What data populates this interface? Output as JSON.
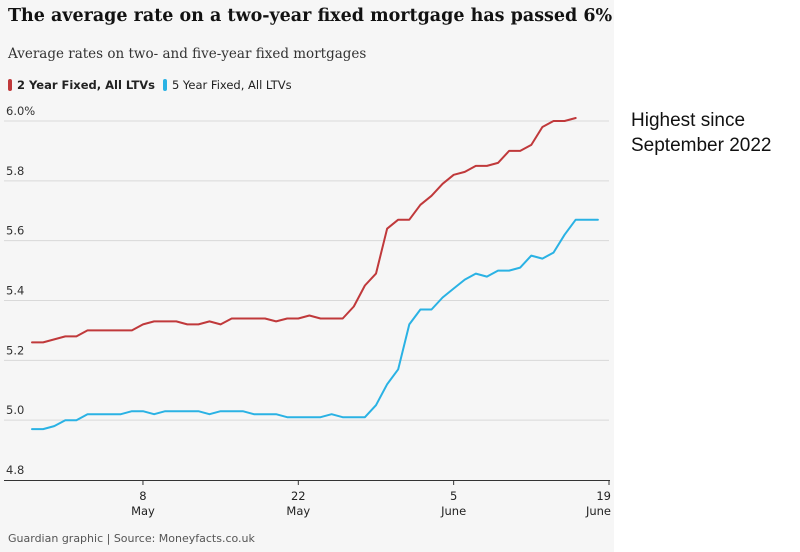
{
  "title": "The average rate on a two-year fixed mortgage has passed 6%",
  "subtitle": "Average rates on two- and five-year fixed mortgages",
  "legend": {
    "series1": "2 Year Fixed, All LTVs",
    "series2": "5 Year Fixed, All LTVs"
  },
  "source": "Guardian graphic | Source: Moneyfacts.co.uk",
  "annotation": {
    "line1": "Highest since",
    "line2": "September 2022"
  },
  "colors": {
    "two_year": "#c0393b",
    "five_year": "#2ab2e4",
    "grid": "#d9d9d9",
    "axis": "#333333"
  },
  "chart_data": {
    "type": "line",
    "title": "The average rate on a two-year fixed mortgage has passed 6%",
    "subtitle": "Average rates on two- and five-year fixed mortgages",
    "xlabel": "",
    "ylabel": "",
    "x_start_day": -2,
    "x_end_day": 50,
    "ylim": [
      4.8,
      6.0
    ],
    "yticks": [
      "6.0%",
      "5.8",
      "5.6",
      "5.4",
      "5.2",
      "5.0",
      "4.8"
    ],
    "ytick_values": [
      6.0,
      5.8,
      5.6,
      5.4,
      5.2,
      5.0,
      4.8
    ],
    "xticks": [
      {
        "day": 8,
        "day_label": "8",
        "month_label": "May"
      },
      {
        "day": 22,
        "day_label": "22",
        "month_label": "May"
      },
      {
        "day": 36,
        "day_label": "5",
        "month_label": "June"
      },
      {
        "day": 50,
        "day_label": "19",
        "month_label": "June"
      }
    ],
    "series": [
      {
        "name": "2 Year Fixed, All LTVs",
        "points": [
          [
            -2,
            5.26
          ],
          [
            -1,
            5.26
          ],
          [
            0,
            5.27
          ],
          [
            1,
            5.28
          ],
          [
            2,
            5.28
          ],
          [
            3,
            5.3
          ],
          [
            4,
            5.3
          ],
          [
            5,
            5.3
          ],
          [
            6,
            5.3
          ],
          [
            7,
            5.3
          ],
          [
            8,
            5.32
          ],
          [
            9,
            5.33
          ],
          [
            10,
            5.33
          ],
          [
            11,
            5.33
          ],
          [
            12,
            5.32
          ],
          [
            13,
            5.32
          ],
          [
            14,
            5.33
          ],
          [
            15,
            5.32
          ],
          [
            16,
            5.34
          ],
          [
            17,
            5.34
          ],
          [
            18,
            5.34
          ],
          [
            19,
            5.34
          ],
          [
            20,
            5.33
          ],
          [
            21,
            5.34
          ],
          [
            22,
            5.34
          ],
          [
            23,
            5.35
          ],
          [
            24,
            5.34
          ],
          [
            25,
            5.34
          ],
          [
            26,
            5.34
          ],
          [
            27,
            5.38
          ],
          [
            28,
            5.45
          ],
          [
            29,
            5.49
          ],
          [
            30,
            5.64
          ],
          [
            31,
            5.67
          ],
          [
            32,
            5.67
          ],
          [
            33,
            5.72
          ],
          [
            34,
            5.75
          ],
          [
            35,
            5.79
          ],
          [
            36,
            5.82
          ],
          [
            37,
            5.83
          ],
          [
            38,
            5.85
          ],
          [
            39,
            5.85
          ],
          [
            40,
            5.86
          ],
          [
            41,
            5.9
          ],
          [
            42,
            5.9
          ],
          [
            43,
            5.92
          ],
          [
            44,
            5.98
          ],
          [
            45,
            6.0
          ],
          [
            46,
            6.0
          ],
          [
            47,
            6.01
          ]
        ]
      },
      {
        "name": "5 Year Fixed, All LTVs",
        "points": [
          [
            -2,
            4.97
          ],
          [
            -1,
            4.97
          ],
          [
            0,
            4.98
          ],
          [
            1,
            5.0
          ],
          [
            2,
            5.0
          ],
          [
            3,
            5.02
          ],
          [
            4,
            5.02
          ],
          [
            5,
            5.02
          ],
          [
            6,
            5.02
          ],
          [
            7,
            5.03
          ],
          [
            8,
            5.03
          ],
          [
            9,
            5.02
          ],
          [
            10,
            5.03
          ],
          [
            11,
            5.03
          ],
          [
            12,
            5.03
          ],
          [
            13,
            5.03
          ],
          [
            14,
            5.02
          ],
          [
            15,
            5.03
          ],
          [
            16,
            5.03
          ],
          [
            17,
            5.03
          ],
          [
            18,
            5.02
          ],
          [
            19,
            5.02
          ],
          [
            20,
            5.02
          ],
          [
            21,
            5.01
          ],
          [
            22,
            5.01
          ],
          [
            23,
            5.01
          ],
          [
            24,
            5.01
          ],
          [
            25,
            5.02
          ],
          [
            26,
            5.01
          ],
          [
            27,
            5.01
          ],
          [
            28,
            5.01
          ],
          [
            29,
            5.05
          ],
          [
            30,
            5.12
          ],
          [
            31,
            5.17
          ],
          [
            32,
            5.32
          ],
          [
            33,
            5.37
          ],
          [
            34,
            5.37
          ],
          [
            35,
            5.41
          ],
          [
            36,
            5.44
          ],
          [
            37,
            5.47
          ],
          [
            38,
            5.49
          ],
          [
            39,
            5.48
          ],
          [
            40,
            5.5
          ],
          [
            41,
            5.5
          ],
          [
            42,
            5.51
          ],
          [
            43,
            5.55
          ],
          [
            44,
            5.54
          ],
          [
            45,
            5.56
          ],
          [
            46,
            5.62
          ],
          [
            47,
            5.67
          ],
          [
            48,
            5.67
          ],
          [
            49,
            5.67
          ]
        ]
      }
    ]
  }
}
